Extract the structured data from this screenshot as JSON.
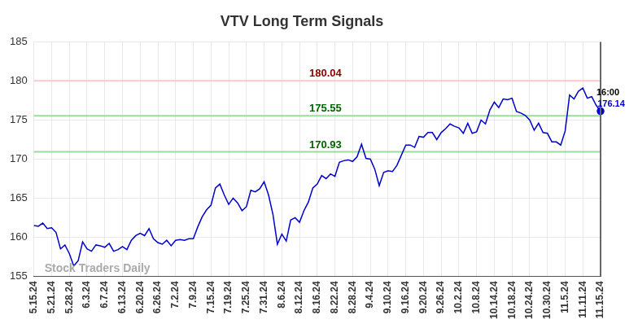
{
  "chart_data": {
    "type": "line",
    "title": "VTV Long Term Signals",
    "categories": [
      "5.15.24",
      null,
      null,
      null,
      "5.21.24",
      null,
      null,
      null,
      "5.28.24",
      null,
      null,
      null,
      "6.3.24",
      null,
      null,
      null,
      "6.7.24",
      null,
      null,
      null,
      "6.13.24",
      null,
      null,
      null,
      "6.20.24",
      null,
      null,
      null,
      "6.26.24",
      null,
      null,
      null,
      "7.2.24",
      null,
      null,
      null,
      "7.9.24",
      null,
      null,
      null,
      "7.15.24",
      null,
      null,
      null,
      "7.19.24",
      null,
      null,
      null,
      "7.25.24",
      null,
      null,
      null,
      "7.31.24",
      null,
      null,
      null,
      "8.6.24",
      null,
      null,
      null,
      "8.12.24",
      null,
      null,
      null,
      "8.16.24",
      null,
      null,
      null,
      "8.22.24",
      null,
      null,
      null,
      "8.28.24",
      null,
      null,
      null,
      "9.4.24",
      null,
      null,
      null,
      "9.10.24",
      null,
      null,
      null,
      "9.16.24",
      null,
      null,
      null,
      "9.20.24",
      null,
      null,
      null,
      "9.26.24",
      null,
      null,
      null,
      "10.2.24",
      null,
      null,
      null,
      "10.8.24",
      null,
      null,
      null,
      "10.14.24",
      null,
      null,
      null,
      "10.18.24",
      null,
      null,
      null,
      "10.24.24",
      null,
      null,
      null,
      "10.30.24",
      null,
      null,
      null,
      "11.5.24",
      null,
      null,
      null,
      "11.11.24",
      null,
      null,
      null,
      "11.15.24"
    ],
    "values": [
      161.5,
      161.4,
      161.8,
      161.1,
      161.2,
      160.6,
      158.5,
      159.0,
      157.9,
      156.3,
      157.0,
      159.4,
      158.5,
      158.2,
      159.0,
      158.9,
      158.7,
      159.2,
      158.2,
      158.4,
      158.8,
      158.4,
      159.6,
      160.2,
      160.5,
      160.2,
      161.1,
      159.8,
      159.3,
      159.1,
      159.6,
      158.9,
      159.6,
      159.7,
      159.6,
      159.8,
      159.8,
      161.3,
      162.6,
      163.5,
      164.1,
      166.3,
      166.8,
      165.4,
      164.2,
      165.0,
      164.4,
      163.4,
      163.9,
      166.0,
      165.8,
      166.2,
      167.1,
      165.4,
      162.9,
      159.1,
      160.4,
      159.5,
      162.2,
      162.5,
      161.9,
      163.4,
      164.5,
      166.3,
      166.8,
      167.9,
      167.5,
      168.1,
      167.8,
      169.6,
      169.8,
      169.9,
      169.7,
      170.3,
      171.9,
      170.1,
      170.0,
      168.7,
      166.6,
      168.3,
      168.5,
      168.4,
      169.2,
      170.5,
      171.8,
      171.8,
      171.5,
      172.9,
      172.8,
      173.4,
      173.4,
      172.5,
      173.4,
      173.9,
      174.5,
      174.2,
      174.0,
      173.3,
      174.6,
      173.3,
      173.5,
      175.0,
      174.5,
      176.3,
      177.3,
      176.6,
      177.7,
      177.6,
      177.8,
      176.1,
      175.9,
      175.6,
      175.0,
      173.7,
      174.6,
      173.4,
      173.3,
      172.2,
      172.2,
      171.8,
      173.6,
      178.2,
      177.7,
      178.7,
      179.1,
      177.8,
      178.0,
      176.9,
      176.14
    ],
    "color": "#0000cc",
    "ylim": [
      155,
      185
    ],
    "yticks": [
      155,
      160,
      165,
      170,
      175,
      180,
      185
    ],
    "grid": true,
    "reference_lines": [
      {
        "value": 180.04,
        "label": "180.04",
        "color": "#ffc8c8",
        "label_color": "#8b0000"
      },
      {
        "value": 175.55,
        "label": "175.55",
        "color": "#99dd99",
        "label_color": "#006400"
      },
      {
        "value": 170.93,
        "label": "170.93",
        "color": "#99dd99",
        "label_color": "#006400"
      }
    ],
    "last_point": {
      "time_label": "16:00",
      "value_label": "176.14"
    },
    "watermark": "Stock Traders Daily"
  }
}
